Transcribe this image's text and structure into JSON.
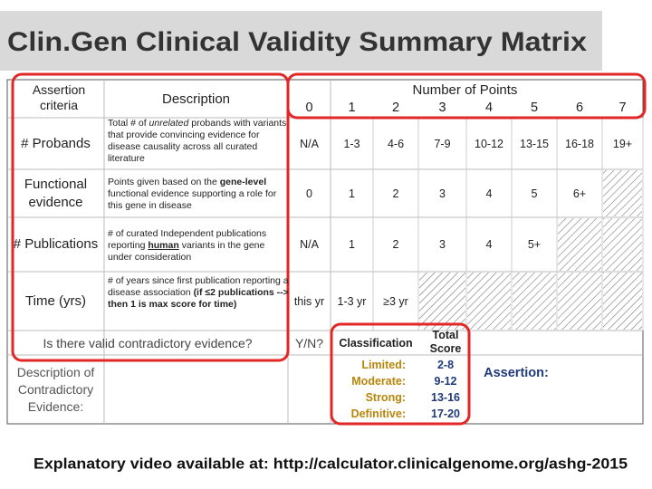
{
  "title": "Clin.Gen Clinical Validity Summary Matrix",
  "table": {
    "header": {
      "criteria": "Assertion criteria",
      "description": "Description",
      "points_title": "Number of Points",
      "point_columns": [
        0,
        1,
        2,
        3,
        4,
        5,
        6,
        7
      ]
    },
    "rows": [
      {
        "criteria": "# Probands",
        "description": [
          "Total # of ",
          "unrelated",
          " probands with variants that provide convincing evidence for disease causality across all curated literature"
        ],
        "points": [
          "N/A",
          "1-3",
          "4-6",
          "7-9",
          "10-12",
          "13-15",
          "16-18",
          "19+"
        ]
      },
      {
        "criteria": "Functional evidence",
        "description": [
          "Points given based on the ",
          "gene-level",
          " functional evidence supporting a role for this gene in disease"
        ],
        "points": [
          "0",
          "1",
          "2",
          "3",
          "4",
          "5",
          "6+"
        ]
      },
      {
        "criteria": "# Publications",
        "description": [
          "# of curated Independent publications reporting ",
          "human",
          " variants in the gene under consideration"
        ],
        "points": [
          "N/A",
          "1",
          "2",
          "3",
          "4",
          "5+"
        ]
      },
      {
        "criteria": "Time (yrs)",
        "description": [
          "# of years since first publication reporting a disease association ",
          "(if ≤2 publications --> then 1 is max score for time)"
        ],
        "points": [
          "this yr",
          "1-3 yr",
          "≥3 yr"
        ]
      }
    ],
    "contradictory": {
      "question": "Is there valid contradictory evidence?",
      "answer": "Y/N?",
      "description_label": "Description of Contradictory Evidence:"
    }
  },
  "classification": {
    "header": "Classification",
    "score_header": "Total Score",
    "levels": [
      {
        "label": "Limited:",
        "score": "2-8"
      },
      {
        "label": "Moderate:",
        "score": "9-12"
      },
      {
        "label": "Strong:",
        "score": "13-16"
      },
      {
        "label": "Definitive:",
        "score": "17-20"
      }
    ],
    "assertion": "Assertion:"
  },
  "footer": "Explanatory video available at:  http://calculator.clinicalgenome.org/ashg-2015"
}
